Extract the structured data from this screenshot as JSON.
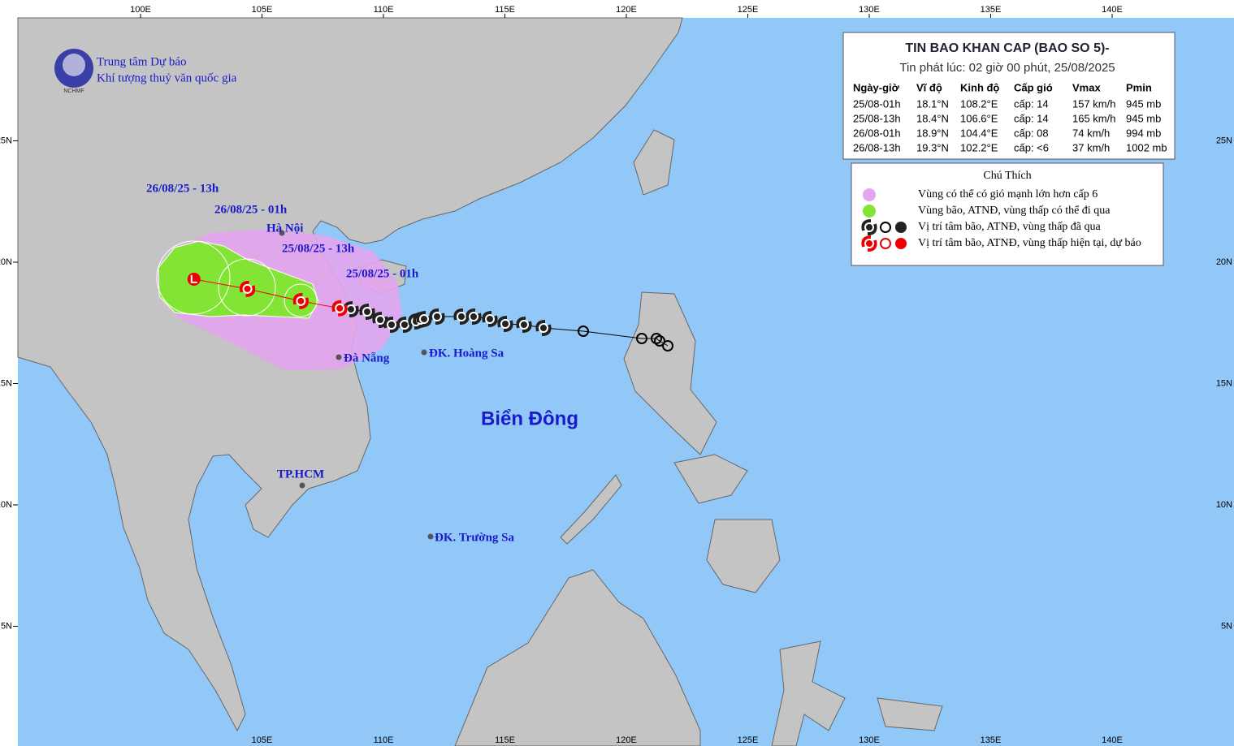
{
  "header": {
    "org_line1": "Trung tâm Dự báo",
    "org_line2": "Khí tượng thuỷ văn quốc gia",
    "logo_text": "NCHMF"
  },
  "bulletin": {
    "title": "TIN BAO KHAN CAP (BAO SO 5)-",
    "issued": "Tin phát lúc: 02 giờ 00 phút, 25/08/2025",
    "columns": [
      "Ngày-giờ",
      "Vĩ độ",
      "Kinh độ",
      "Cấp gió",
      "Vmax",
      "Pmin"
    ],
    "rows": [
      [
        "25/08-01h",
        "18.1°N",
        "108.2°E",
        "cấp: 14",
        "157 km/h",
        "945 mb"
      ],
      [
        "25/08-13h",
        "18.4°N",
        "106.6°E",
        "cấp: 14",
        "165 km/h",
        "945 mb"
      ],
      [
        "26/08-01h",
        "18.9°N",
        "104.4°E",
        "cấp: 08",
        "74 km/h",
        "994 mb"
      ],
      [
        "26/08-13h",
        "19.3°N",
        "102.2°E",
        "cấp: <6",
        "37 km/h",
        "1002 mb"
      ]
    ]
  },
  "legend": {
    "title": "Chú Thích",
    "items": [
      "Vùng có thể có gió mạnh lớn hơn cấp 6",
      "Vùng bão, ATNĐ, vùng thấp có thể đi qua",
      "Vị trí tâm bão, ATNĐ, vùng thấp đã qua",
      "Vị trí tâm bão, ATNĐ, vùng thấp hiện tại, dự báo"
    ]
  },
  "map": {
    "sea_label": "Biển Đông",
    "time_labels": [
      "26/08/25 - 13h",
      "26/08/25 - 01h",
      "25/08/25 - 13h",
      "25/08/25 - 01h"
    ],
    "places": [
      "Hà Nội",
      "Đà Nẵng",
      "ĐK. Hoàng Sa",
      "TP.HCM",
      "ĐK. Trường Sa"
    ],
    "lon_ticks": [
      {
        "value": 100,
        "label": "100E"
      },
      {
        "value": 105,
        "label": "105E"
      },
      {
        "value": 110,
        "label": "110E"
      },
      {
        "value": 115,
        "label": "115E"
      },
      {
        "value": 120,
        "label": "120E"
      },
      {
        "value": 125,
        "label": "125E"
      },
      {
        "value": 130,
        "label": "130E"
      },
      {
        "value": 135,
        "label": "135E"
      },
      {
        "value": 140,
        "label": "140E"
      }
    ],
    "lat_ticks": [
      {
        "value": 5,
        "label": "5N"
      },
      {
        "value": 10,
        "label": "10N"
      },
      {
        "value": 15,
        "label": "15N"
      },
      {
        "value": 20,
        "label": "20N"
      },
      {
        "value": 25,
        "label": "25N"
      }
    ]
  }
}
